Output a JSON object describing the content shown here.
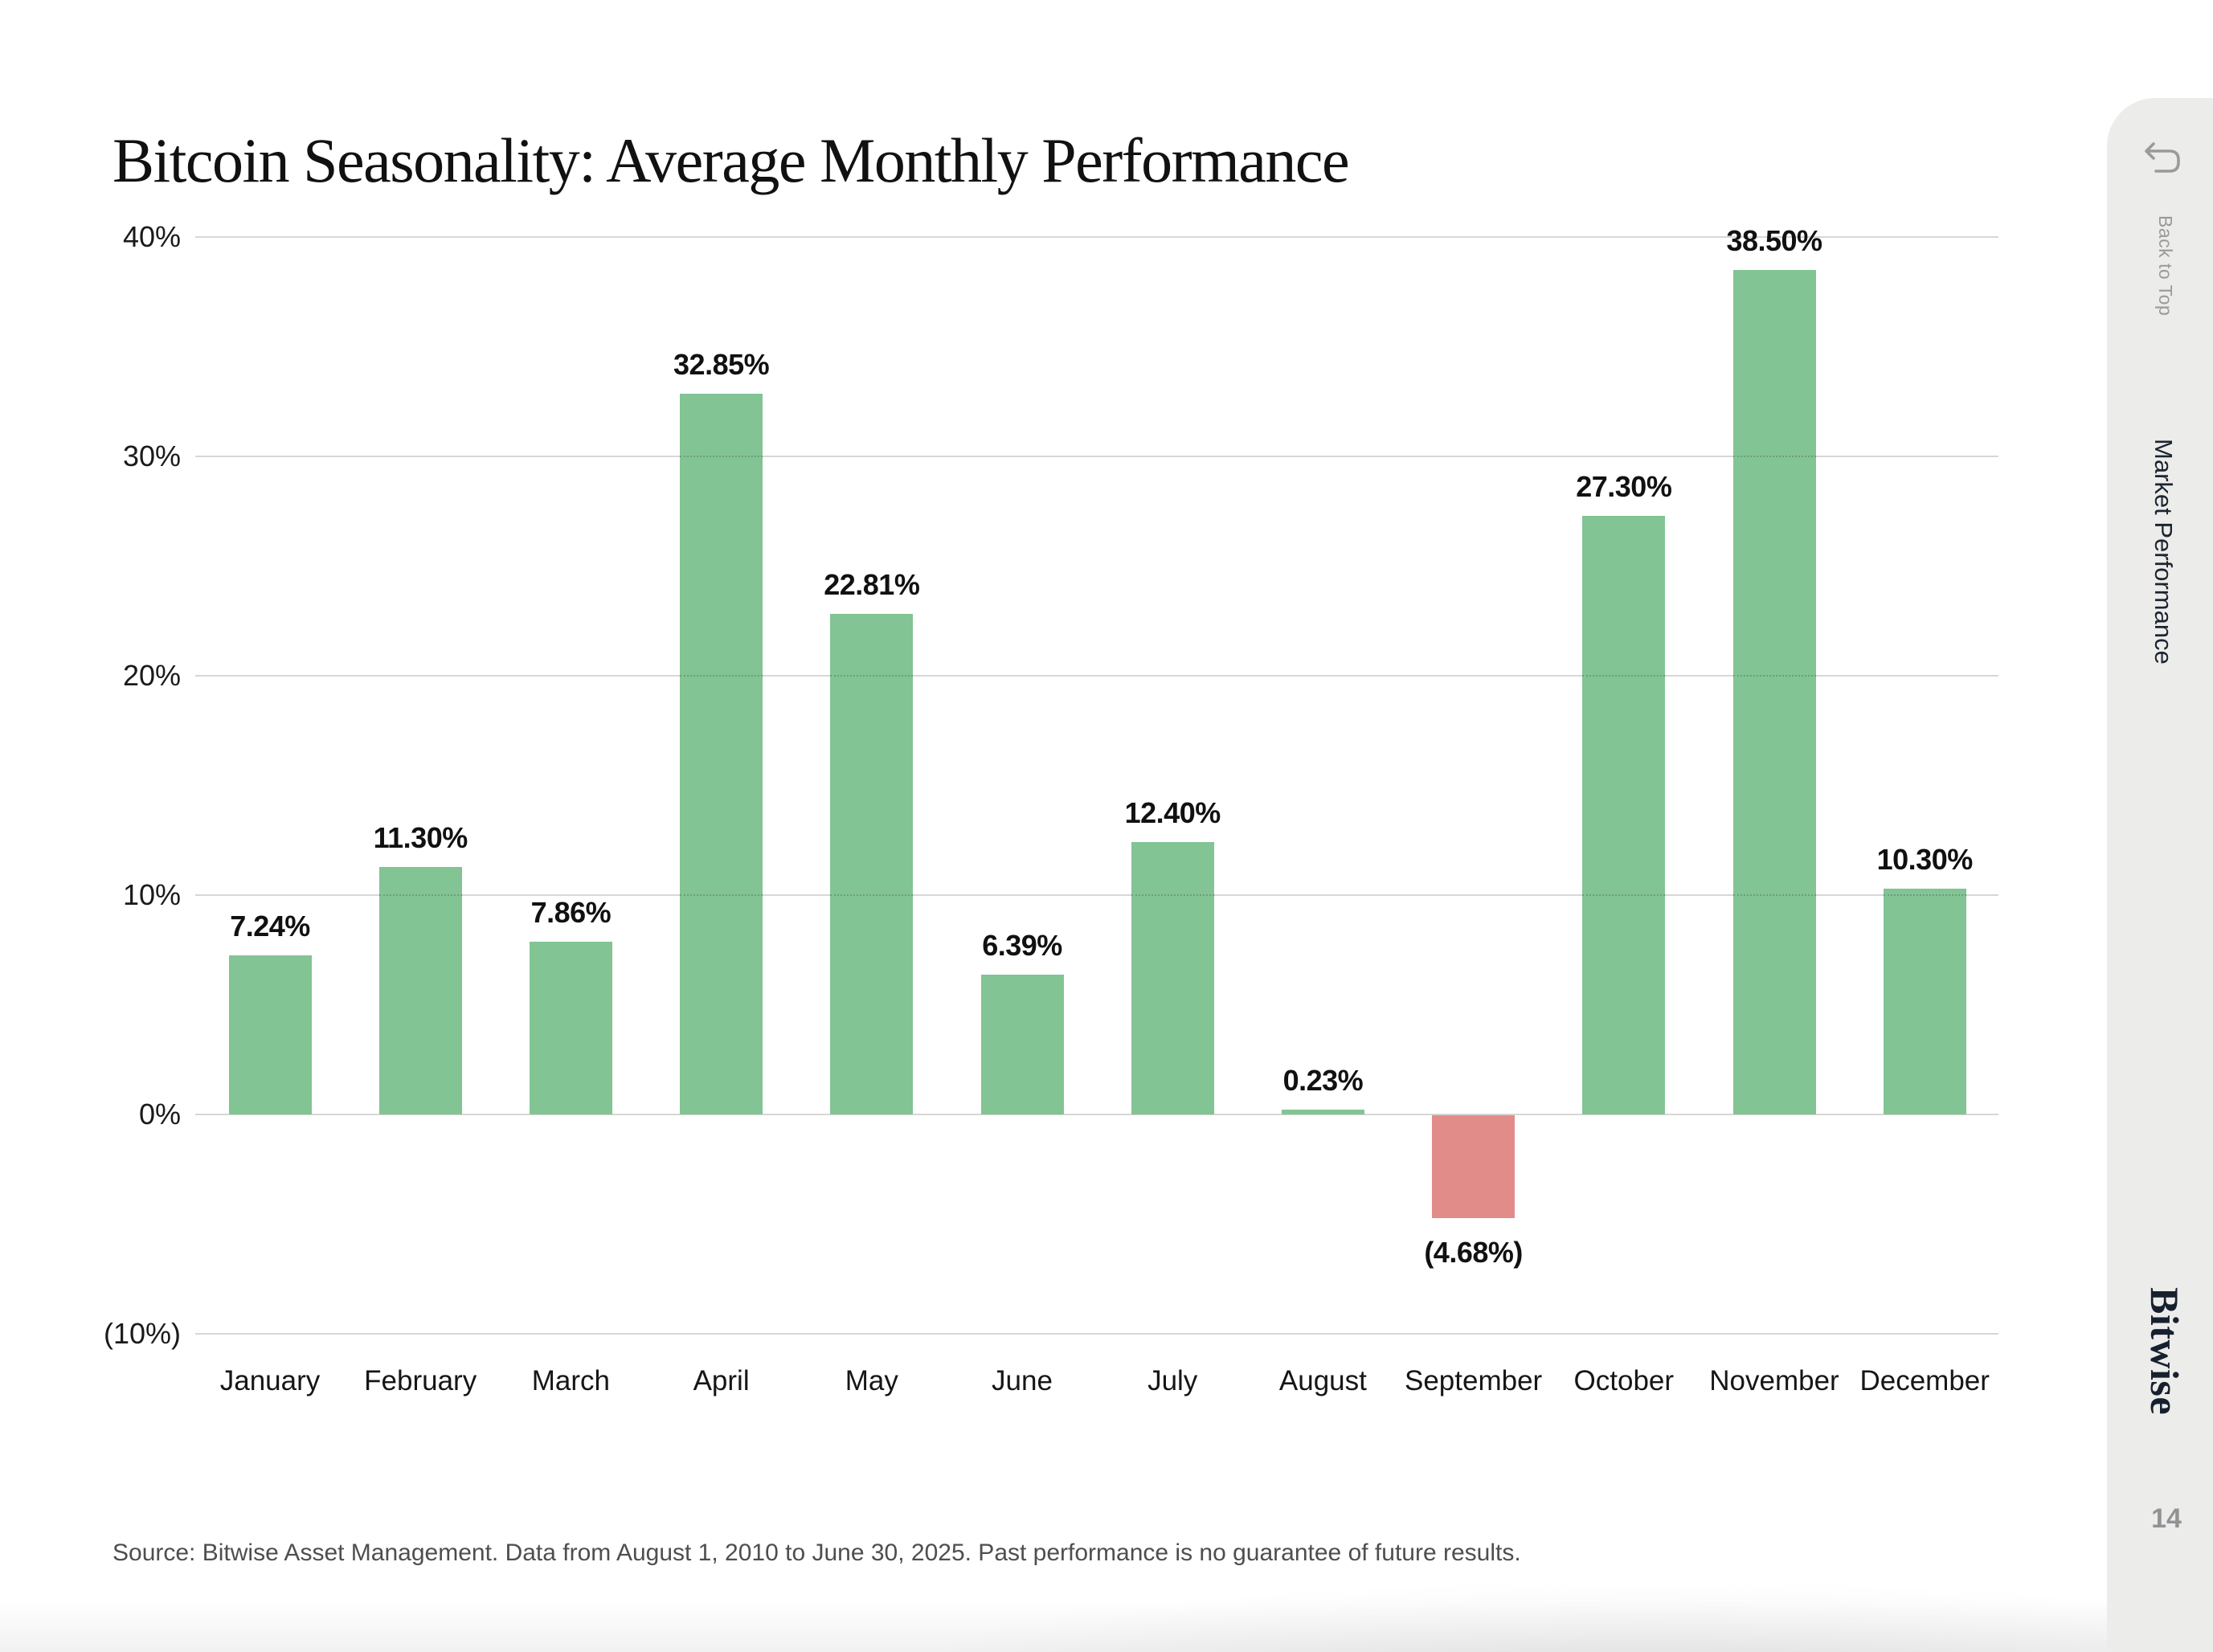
{
  "page": {
    "title": "Bitcoin Seasonality: Average Monthly Performance",
    "source_note": "Source: Bitwise Asset Management. Data from August 1, 2010 to June 30, 2025. Past performance is no guarantee of future results.",
    "page_number": "14"
  },
  "sidebar": {
    "back_to_top_label": "Back to Top",
    "back_icon": "return-arrow-icon",
    "section_label": "Market Performance",
    "brand": "Bitwise"
  },
  "colors": {
    "positive_bar": "#82C494",
    "negative_bar": "#E28C8A",
    "gridline": "#D7D7D6",
    "sidebar_bg": "#ECECEA",
    "title_text": "#111111",
    "axis_text": "#1A1A1A",
    "value_text": "#111111",
    "source_text": "#4E4E4E",
    "muted_text": "#9A9A9A",
    "brand_text": "#16202E"
  },
  "chart_data": {
    "type": "bar",
    "title": "Bitcoin Seasonality: Average Monthly Performance",
    "categories": [
      "January",
      "February",
      "March",
      "April",
      "May",
      "June",
      "July",
      "August",
      "September",
      "October",
      "November",
      "December"
    ],
    "values": [
      7.24,
      11.3,
      7.86,
      32.85,
      22.81,
      6.39,
      12.4,
      0.23,
      -4.68,
      27.3,
      38.5,
      10.3
    ],
    "value_labels": [
      "7.24%",
      "11.30%",
      "7.86%",
      "32.85%",
      "22.81%",
      "6.39%",
      "12.40%",
      "0.23%",
      "(4.68%)",
      "27.30%",
      "38.50%",
      "10.30%"
    ],
    "y_ticks": [
      {
        "value": 40,
        "label": "40%"
      },
      {
        "value": 30,
        "label": "30%"
      },
      {
        "value": 20,
        "label": "20%"
      },
      {
        "value": 10,
        "label": "10%"
      },
      {
        "value": 0,
        "label": "0%"
      },
      {
        "value": -10,
        "label": "(10%)"
      }
    ],
    "ylim": [
      -10,
      40
    ],
    "xlabel": "",
    "ylabel": "",
    "grid": true,
    "legend": false
  }
}
